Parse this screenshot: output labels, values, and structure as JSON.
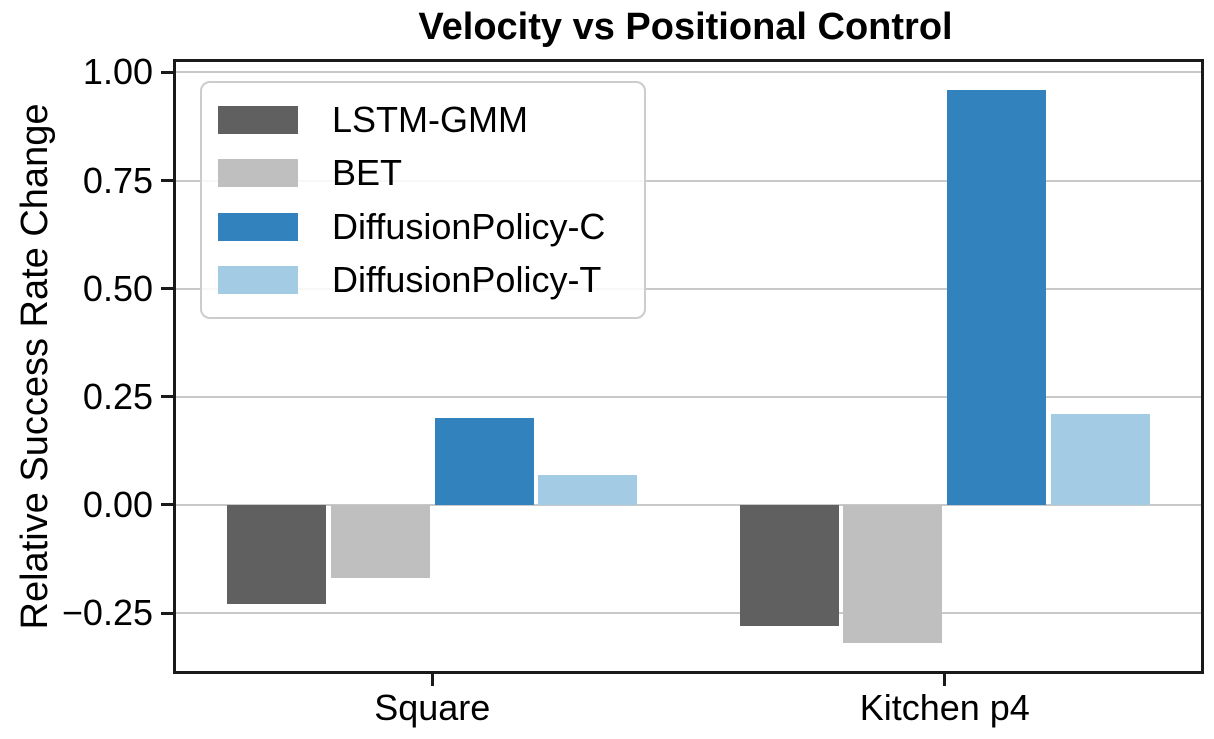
{
  "chart_data": {
    "type": "bar",
    "title": "Velocity vs Positional Control",
    "xlabel": "",
    "ylabel": "Relative Success Rate Change",
    "categories": [
      "Square",
      "Kitchen p4"
    ],
    "series": [
      {
        "name": "LSTM-GMM",
        "color": "#606060",
        "values": [
          -0.23,
          -0.28
        ]
      },
      {
        "name": "BET",
        "color": "#bfbfbf",
        "values": [
          -0.17,
          -0.32
        ]
      },
      {
        "name": "DiffusionPolicy-C",
        "color": "#3182bd",
        "values": [
          0.2,
          0.96
        ]
      },
      {
        "name": "DiffusionPolicy-T",
        "color": "#a3cbe3",
        "values": [
          0.07,
          0.21
        ]
      }
    ],
    "y_ticks": [
      1.0,
      0.75,
      0.5,
      0.25,
      0.0,
      -0.25
    ],
    "y_tick_labels": [
      "1.00",
      "0.75",
      "0.50",
      "0.25",
      "0.00",
      "−0.25"
    ],
    "ylim": [
      -0.384,
      1.024
    ],
    "grid": "horizontal",
    "legend_position": "upper-left",
    "axis_color": "#1a1a1a",
    "grid_color": "#c9c9c9"
  }
}
